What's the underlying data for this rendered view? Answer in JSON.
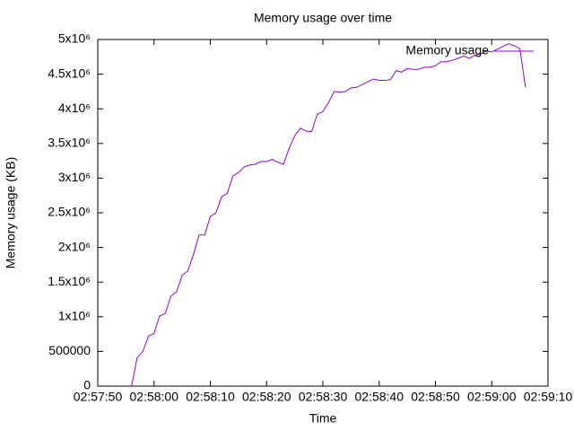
{
  "chart_data": {
    "type": "line",
    "title": "Memory usage over time",
    "x_label": "Time",
    "y_label": "Memory usage (KB)",
    "x": [
      "02:57:56",
      "02:57:57",
      "02:57:58",
      "02:57:59",
      "02:58:00",
      "02:58:01",
      "02:58:02",
      "02:58:03",
      "02:58:04",
      "02:58:05",
      "02:58:06",
      "02:58:07",
      "02:58:08",
      "02:58:09",
      "02:58:10",
      "02:58:11",
      "02:58:12",
      "02:58:13",
      "02:58:14",
      "02:58:15",
      "02:58:16",
      "02:58:17",
      "02:58:18",
      "02:58:19",
      "02:58:20",
      "02:58:21",
      "02:58:22",
      "02:58:23",
      "02:58:24",
      "02:58:25",
      "02:58:26",
      "02:58:27",
      "02:58:28",
      "02:58:29",
      "02:58:30",
      "02:58:31",
      "02:58:32",
      "02:58:33",
      "02:58:34",
      "02:58:35",
      "02:58:36",
      "02:58:37",
      "02:58:38",
      "02:58:39",
      "02:58:40",
      "02:58:41",
      "02:58:42",
      "02:58:43",
      "02:58:44",
      "02:58:45",
      "02:58:46",
      "02:58:47",
      "02:58:48",
      "02:58:49",
      "02:58:50",
      "02:58:51",
      "02:58:52",
      "02:58:53",
      "02:58:54",
      "02:58:55",
      "02:58:56",
      "02:58:57",
      "02:58:58",
      "02:58:59",
      "02:59:00",
      "02:59:01",
      "02:59:02",
      "02:59:03",
      "02:59:04",
      "02:59:05",
      "02:59:06"
    ],
    "series": [
      {
        "name": "Memory usage",
        "color": "#9400d3",
        "values": [
          0,
          410000,
          500000,
          720000,
          760000,
          1010000,
          1050000,
          1300000,
          1360000,
          1600000,
          1660000,
          1900000,
          2180000,
          2180000,
          2450000,
          2500000,
          2730000,
          2780000,
          3030000,
          3080000,
          3160000,
          3190000,
          3200000,
          3240000,
          3240000,
          3270000,
          3230000,
          3200000,
          3430000,
          3610000,
          3720000,
          3680000,
          3670000,
          3920000,
          3960000,
          4090000,
          4250000,
          4240000,
          4250000,
          4300000,
          4310000,
          4350000,
          4390000,
          4430000,
          4410000,
          4410000,
          4420000,
          4550000,
          4530000,
          4580000,
          4570000,
          4570000,
          4600000,
          4600000,
          4620000,
          4680000,
          4680000,
          4700000,
          4730000,
          4760000,
          4730000,
          4770000,
          4790000,
          4830000,
          4820000,
          4860000,
          4900000,
          4940000,
          4910000,
          4870000,
          4310000
        ]
      }
    ],
    "xlim": [
      "02:57:50",
      "02:59:10"
    ],
    "xticks": [
      "02:57:50",
      "02:58:00",
      "02:58:10",
      "02:58:20",
      "02:58:30",
      "02:58:40",
      "02:58:50",
      "02:59:00",
      "02:59:10"
    ],
    "ylim": [
      0,
      5000000
    ],
    "yticks": [
      0,
      500000,
      {
        "value": 1000000,
        "label": "1x10⁶"
      },
      {
        "value": 1500000,
        "label": "1.5x10⁶"
      },
      {
        "value": 2000000,
        "label": "2x10⁶"
      },
      {
        "value": 2500000,
        "label": "2.5x10⁶"
      },
      {
        "value": 3000000,
        "label": "3x10⁶"
      },
      {
        "value": 3500000,
        "label": "3.5x10⁶"
      },
      {
        "value": 4000000,
        "label": "4x10⁶"
      },
      {
        "value": 4500000,
        "label": "4.5x10⁶"
      },
      {
        "value": 5000000,
        "label": "5x10⁶"
      }
    ],
    "legend": "top-right",
    "grid": false
  }
}
